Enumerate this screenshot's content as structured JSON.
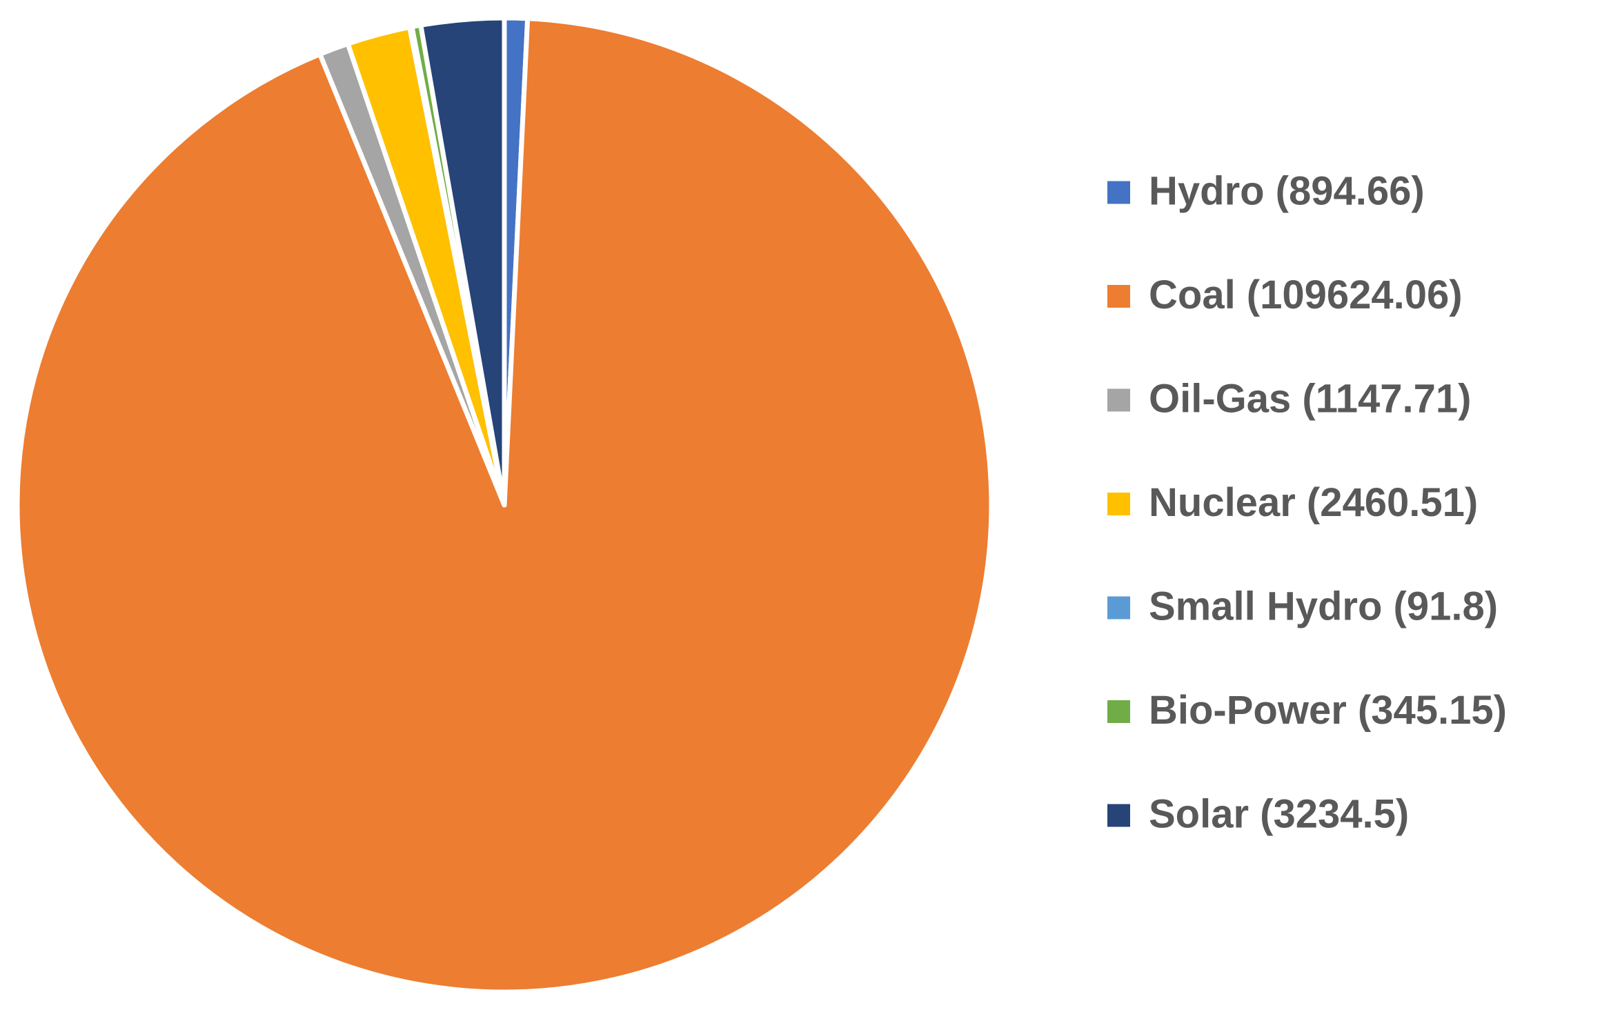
{
  "chart_data": {
    "type": "pie",
    "categories": [
      "Hydro (894.66)",
      "Coal (109624.06)",
      "Oil-Gas (1147.71)",
      "Nuclear (2460.51)",
      "Small Hydro (91.8)",
      "Bio-Power (345.15)",
      "Solar (3234.5)"
    ],
    "values": [
      894.66,
      109624.06,
      1147.71,
      2460.51,
      91.8,
      345.15,
      3234.5
    ],
    "colors": [
      "#4472c4",
      "#ed7d31",
      "#a5a5a5",
      "#ffc000",
      "#5b9bd5",
      "#70ad47",
      "#264478"
    ],
    "legend": "right"
  }
}
